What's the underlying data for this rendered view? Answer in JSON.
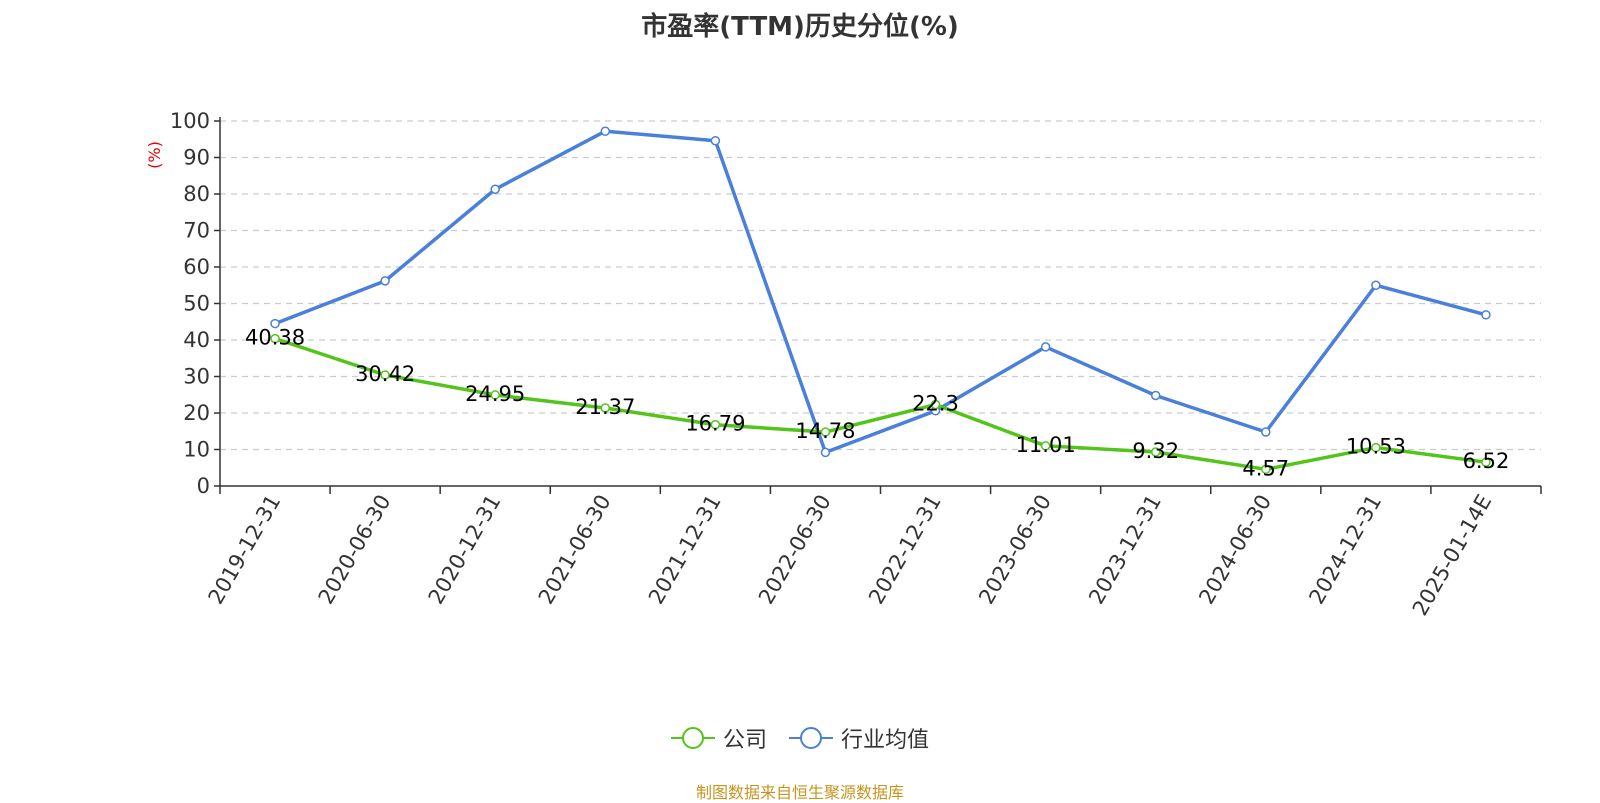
{
  "chart_data": {
    "type": "line",
    "title": "市盈率(TTM)历史分位(%)",
    "ylabel": "(%)",
    "ylim": [
      0,
      100
    ],
    "yticks": [
      0,
      10,
      20,
      30,
      40,
      50,
      60,
      70,
      80,
      90,
      100
    ],
    "categories": [
      "2019-12-31",
      "2020-06-30",
      "2020-12-31",
      "2021-06-30",
      "2021-12-31",
      "2022-06-30",
      "2022-12-31",
      "2023-06-30",
      "2023-12-31",
      "2024-06-30",
      "2024-12-31",
      "2025-01-14E"
    ],
    "series": [
      {
        "name": "公司",
        "color": "#52c41a",
        "values": [
          40.38,
          30.42,
          24.95,
          21.37,
          16.79,
          14.78,
          22.3,
          11.01,
          9.32,
          4.57,
          10.53,
          6.52
        ],
        "labels": [
          "40.38",
          "30.42",
          "24.95",
          "21.37",
          "16.79",
          "14.78",
          "22.3",
          "11.01",
          "9.32",
          "4.57",
          "10.53",
          "6.52"
        ]
      },
      {
        "name": "行业均值",
        "color": "#4a7fdc",
        "values": [
          44.5,
          56.2,
          81.3,
          97.2,
          94.6,
          9.2,
          20.6,
          38.1,
          24.8,
          14.8,
          55.0,
          46.9
        ]
      }
    ],
    "grid": true,
    "legend_position": "bottom-center",
    "ylabel_color": "#e60000"
  },
  "source_text": "制图数据来自恒生聚源数据库"
}
